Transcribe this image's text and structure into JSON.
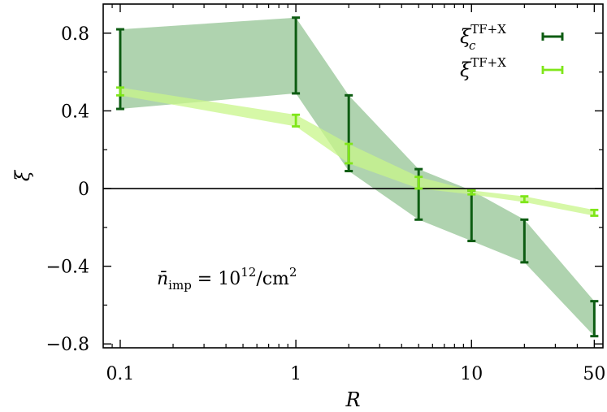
{
  "chart_data": {
    "type": "line",
    "xscale": "log",
    "xlabel": "R",
    "ylabel": "ξ",
    "xlim": [
      0.08,
      56
    ],
    "ylim": [
      -0.82,
      0.95
    ],
    "xticks": [
      {
        "value": 0.1,
        "label": "0.1"
      },
      {
        "value": 1,
        "label": "1"
      },
      {
        "value": 10,
        "label": "10"
      },
      {
        "value": 50,
        "label": "50"
      }
    ],
    "yticks": [
      {
        "value": 0.8,
        "label": "0.8"
      },
      {
        "value": 0.4,
        "label": "0.4"
      },
      {
        "value": 0,
        "label": "0"
      },
      {
        "value": -0.4,
        "label": "−0.4"
      },
      {
        "value": -0.8,
        "label": "−0.8"
      }
    ],
    "reference_line_y": 0,
    "annotation": {
      "base": "n̄",
      "sub": "imp",
      "mid": " = 10",
      "sup": "12",
      "tail": "/cm",
      "sup2": "2"
    },
    "series": [
      {
        "name": "ξ_c^TF+X",
        "legend_base": "ξ",
        "legend_sub": "c",
        "legend_sup": "TF+X",
        "color": "#0d5c12",
        "band_color": "#2e8b2e",
        "band_opacity": 0.38,
        "x": [
          0.1,
          1,
          2,
          5,
          10,
          20,
          50
        ],
        "low": [
          0.41,
          0.49,
          0.09,
          -0.16,
          -0.27,
          -0.38,
          -0.76
        ],
        "high": [
          0.82,
          0.88,
          0.48,
          0.1,
          -0.01,
          -0.16,
          -0.58
        ]
      },
      {
        "name": "ξ^TF+X",
        "legend_base": "ξ",
        "legend_sub": "",
        "legend_sup": "TF+X",
        "color": "#7fe619",
        "band_color": "#c8f58a",
        "band_opacity": 0.75,
        "x": [
          0.1,
          1,
          2,
          5,
          10,
          20,
          50
        ],
        "low": [
          0.48,
          0.32,
          0.13,
          0.0,
          -0.03,
          -0.07,
          -0.14
        ],
        "high": [
          0.52,
          0.38,
          0.23,
          0.06,
          -0.01,
          -0.04,
          -0.11
        ]
      }
    ],
    "legend_position": "top-right",
    "grid": false
  }
}
